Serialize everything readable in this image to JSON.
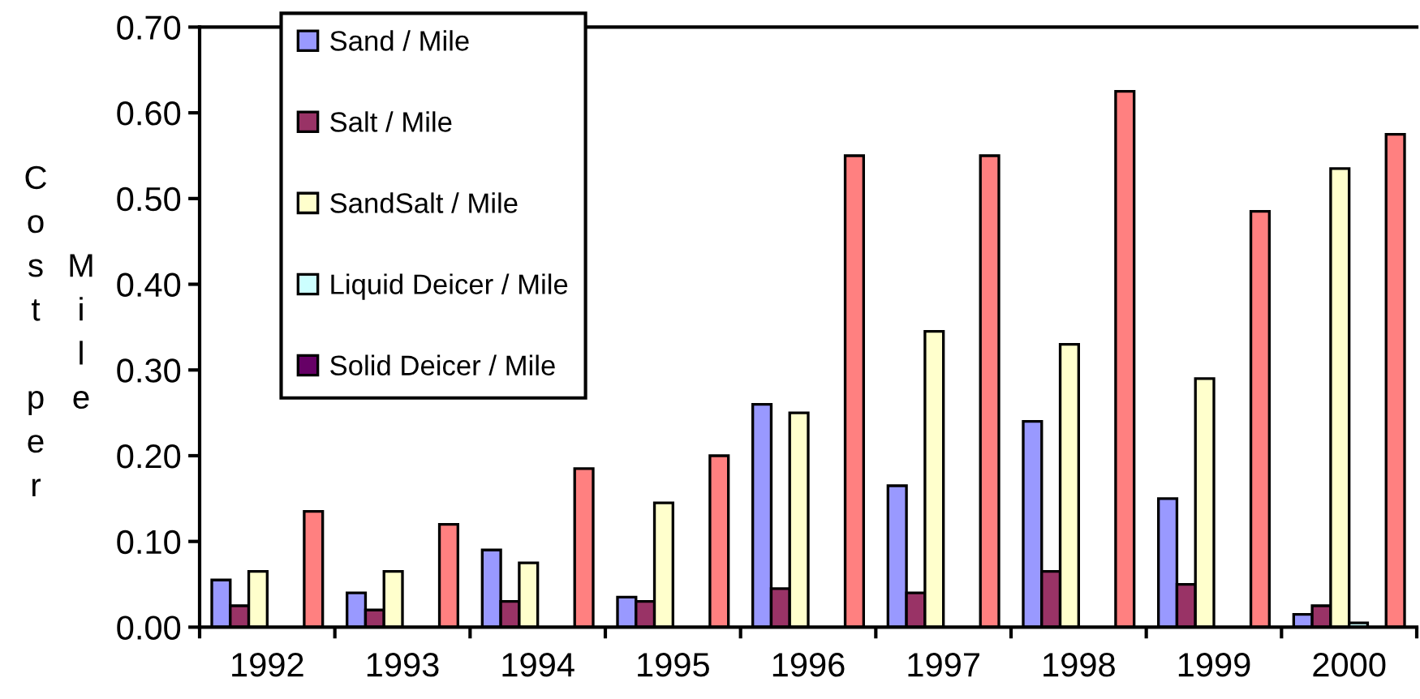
{
  "chart_data": {
    "type": "bar",
    "ylabel": "Cost per Mile",
    "categories": [
      "1992",
      "1993",
      "1994",
      "1995",
      "1996",
      "1997",
      "1998",
      "1999",
      "2000"
    ],
    "series": [
      {
        "name": "Sand / Mile",
        "color": "#9999ff",
        "values": [
          0.055,
          0.04,
          0.09,
          0.035,
          0.26,
          0.165,
          0.24,
          0.15,
          0.015
        ]
      },
      {
        "name": "Salt / Mile",
        "color": "#993366",
        "values": [
          0.025,
          0.02,
          0.03,
          0.03,
          0.045,
          0.04,
          0.065,
          0.05,
          0.025
        ]
      },
      {
        "name": "SandSalt / Mile",
        "color": "#ffffcc",
        "values": [
          0.065,
          0.065,
          0.075,
          0.145,
          0.25,
          0.345,
          0.33,
          0.29,
          0.535
        ]
      },
      {
        "name": "Liquid Deicer / Mile",
        "color": "#ccffff",
        "values": [
          null,
          null,
          null,
          null,
          null,
          null,
          null,
          null,
          0.005
        ]
      },
      {
        "name": "Solid Deicer / Mile",
        "color": "#660066",
        "values": [
          null,
          null,
          null,
          null,
          null,
          null,
          null,
          null,
          null
        ]
      },
      {
        "color": "#ff8080",
        "values": [
          0.135,
          0.12,
          0.185,
          0.2,
          0.55,
          0.55,
          0.625,
          0.485,
          0.575
        ]
      }
    ],
    "ylim": [
      0,
      0.7
    ],
    "yticks": [
      {
        "value": 0,
        "label": "0.00"
      },
      {
        "value": 0.1,
        "label": "0.10"
      },
      {
        "value": 0.2,
        "label": "0.20"
      },
      {
        "value": 0.3,
        "label": "0.30"
      },
      {
        "value": 0.4,
        "label": "0.40"
      },
      {
        "value": 0.5,
        "label": "0.50"
      },
      {
        "value": 0.6,
        "label": "0.60"
      },
      {
        "value": 0.7,
        "label": "0.70"
      }
    ],
    "legend": "top left"
  }
}
